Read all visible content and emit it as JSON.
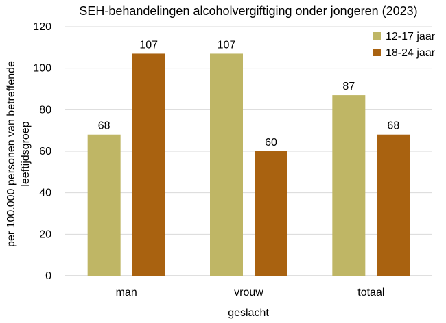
{
  "chart_data": {
    "type": "bar",
    "title": "SEH-behandelingen alcoholvergiftiging onder jongeren (2023)",
    "xlabel": "geslacht",
    "ylabel_lines": [
      "per 100.000 personen van betreffende",
      "leeftijdsgroep"
    ],
    "categories": [
      "man",
      "vrouw",
      "totaal"
    ],
    "series": [
      {
        "name": "12-17 jaar",
        "color": "#bfb665",
        "values": [
          68,
          107,
          87
        ]
      },
      {
        "name": "18-24 jaar",
        "color": "#a96210",
        "values": [
          107,
          60,
          68
        ]
      }
    ],
    "ylim": [
      0,
      120
    ],
    "yticks": [
      0,
      20,
      40,
      60,
      80,
      100,
      120
    ],
    "grid": true,
    "legend_position": "top-right",
    "data_labels": true
  }
}
